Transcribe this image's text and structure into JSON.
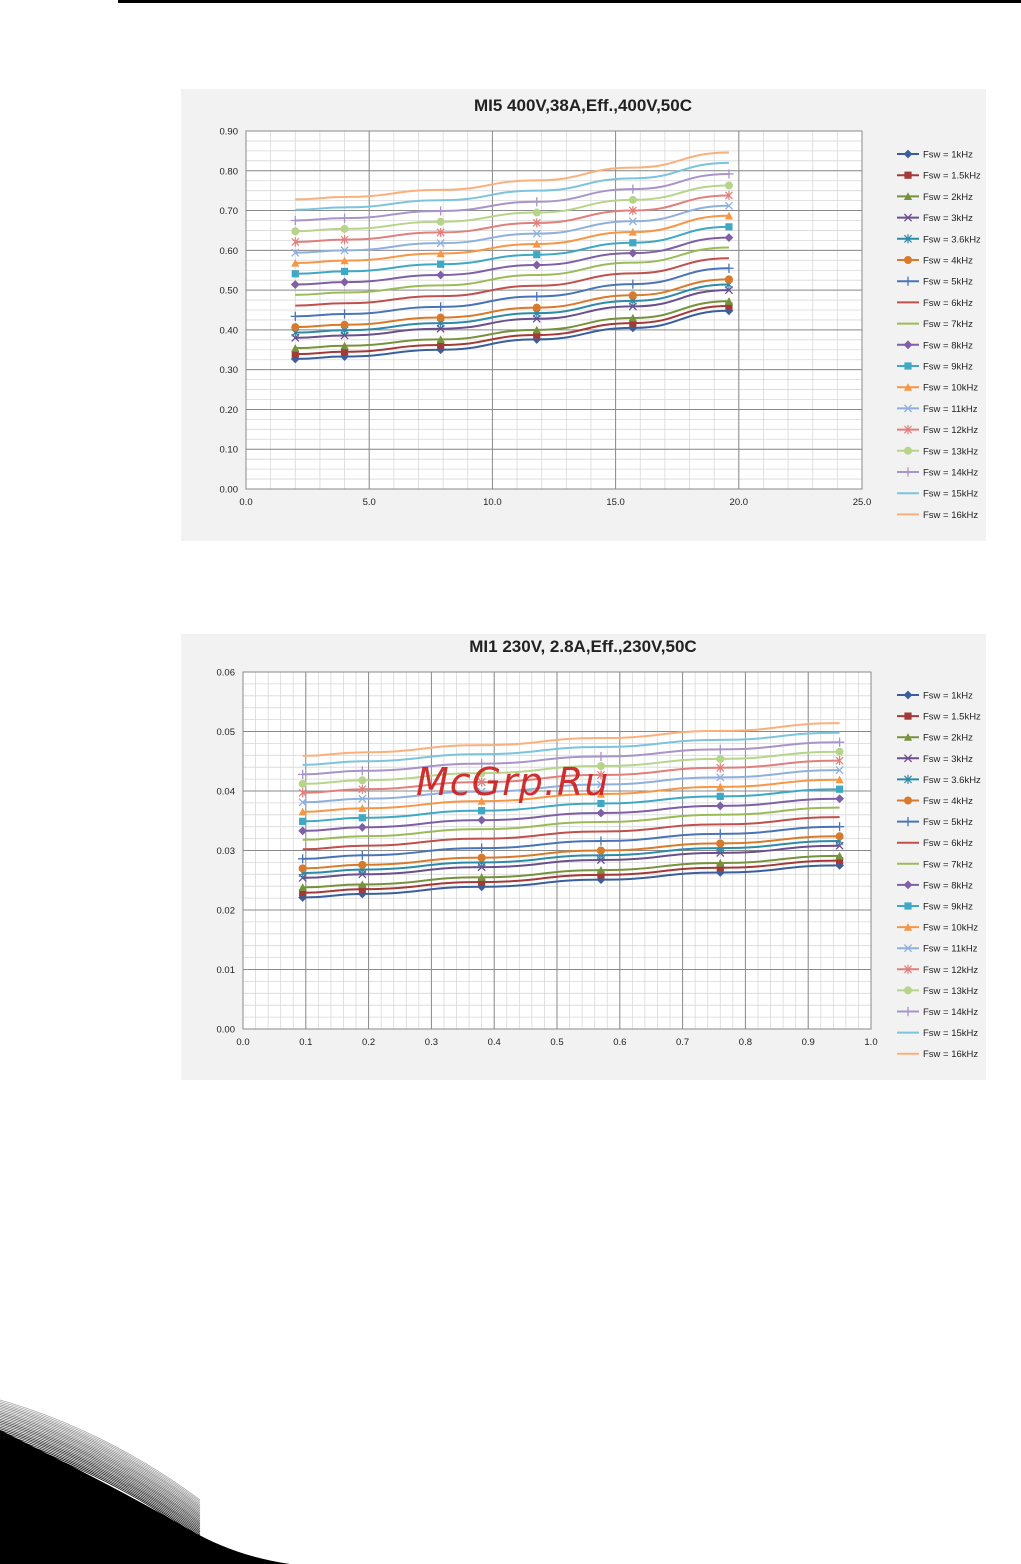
{
  "watermark": "McGrp.Ru",
  "series_colors": {
    "Fsw = 1kHz": "#3b5f9c",
    "Fsw = 1.5kHz": "#a33a37",
    "Fsw = 2kHz": "#76923c",
    "Fsw = 3kHz": "#6a4f8c",
    "Fsw = 3.6kHz": "#2e8aa6",
    "Fsw = 4kHz": "#d87a2c",
    "Fsw = 5kHz": "#4a74b8",
    "Fsw = 6kHz": "#c0504d",
    "Fsw = 7kHz": "#9bbb59",
    "Fsw = 8kHz": "#7f5fa6",
    "Fsw = 9kHz": "#3fa8c4",
    "Fsw = 10kHz": "#f79646",
    "Fsw = 11kHz": "#8fb0dd",
    "Fsw = 12kHz": "#e07f7c",
    "Fsw = 13kHz": "#b6d48a",
    "Fsw = 14kHz": "#a894c9",
    "Fsw = 15kHz": "#7cc4dc",
    "Fsw = 16kHz": "#fbb07c"
  },
  "series_markers": {
    "Fsw = 1kHz": "diamond",
    "Fsw = 1.5kHz": "square",
    "Fsw = 2kHz": "triangle",
    "Fsw = 3kHz": "x",
    "Fsw = 3.6kHz": "star",
    "Fsw = 4kHz": "circle",
    "Fsw = 5kHz": "plus",
    "Fsw = 6kHz": "none",
    "Fsw = 7kHz": "none",
    "Fsw = 8kHz": "diamond",
    "Fsw = 9kHz": "square",
    "Fsw = 10kHz": "triangle",
    "Fsw = 11kHz": "x",
    "Fsw = 12kHz": "star",
    "Fsw = 13kHz": "circle",
    "Fsw = 14kHz": "plus",
    "Fsw = 15kHz": "none",
    "Fsw = 16kHz": "none"
  },
  "chart_data": [
    {
      "type": "line",
      "title": "MI5 400V,38A,Eff.,400V,50C",
      "xlabel": "",
      "ylabel": "",
      "xlim": [
        0,
        25
      ],
      "ylim": [
        0,
        0.9
      ],
      "x_ticks": [
        "0.0",
        "5.0",
        "10.0",
        "15.0",
        "20.0",
        "25.0"
      ],
      "y_ticks": [
        "0.00",
        "0.10",
        "0.20",
        "0.30",
        "0.40",
        "0.50",
        "0.60",
        "0.70",
        "0.80",
        "0.90"
      ],
      "grid": true,
      "legend_position": "right",
      "x": [
        2.0,
        4.0,
        7.9,
        11.8,
        15.7,
        19.6
      ],
      "series": [
        {
          "name": "Fsw = 1kHz",
          "values": [
            0.327,
            0.333,
            0.35,
            0.376,
            0.405,
            0.448
          ]
        },
        {
          "name": "Fsw = 1.5kHz",
          "values": [
            0.339,
            0.345,
            0.362,
            0.387,
            0.417,
            0.46
          ]
        },
        {
          "name": "Fsw = 2kHz",
          "values": [
            0.354,
            0.36,
            0.376,
            0.4,
            0.43,
            0.472
          ]
        },
        {
          "name": "Fsw = 3kHz",
          "values": [
            0.38,
            0.386,
            0.403,
            0.428,
            0.459,
            0.5
          ]
        },
        {
          "name": "Fsw = 3.6kHz",
          "values": [
            0.393,
            0.399,
            0.417,
            0.442,
            0.473,
            0.514
          ]
        },
        {
          "name": "Fsw = 4kHz",
          "values": [
            0.407,
            0.413,
            0.431,
            0.456,
            0.487,
            0.527
          ]
        },
        {
          "name": "Fsw = 5kHz",
          "values": [
            0.434,
            0.44,
            0.458,
            0.484,
            0.515,
            0.555
          ]
        },
        {
          "name": "Fsw = 6kHz",
          "values": [
            0.461,
            0.467,
            0.485,
            0.511,
            0.542,
            0.58
          ]
        },
        {
          "name": "Fsw = 7kHz",
          "values": [
            0.488,
            0.494,
            0.512,
            0.538,
            0.569,
            0.607
          ]
        },
        {
          "name": "Fsw = 8kHz",
          "values": [
            0.514,
            0.52,
            0.538,
            0.563,
            0.593,
            0.632
          ]
        },
        {
          "name": "Fsw = 9kHz",
          "values": [
            0.541,
            0.547,
            0.565,
            0.589,
            0.619,
            0.659
          ]
        },
        {
          "name": "Fsw = 10kHz",
          "values": [
            0.568,
            0.574,
            0.592,
            0.616,
            0.646,
            0.687
          ]
        },
        {
          "name": "Fsw = 11kHz",
          "values": [
            0.594,
            0.6,
            0.618,
            0.642,
            0.673,
            0.712
          ]
        },
        {
          "name": "Fsw = 12kHz",
          "values": [
            0.621,
            0.627,
            0.645,
            0.669,
            0.7,
            0.738
          ]
        },
        {
          "name": "Fsw = 13kHz",
          "values": [
            0.648,
            0.654,
            0.672,
            0.695,
            0.727,
            0.763
          ]
        },
        {
          "name": "Fsw = 14kHz",
          "values": [
            0.675,
            0.681,
            0.699,
            0.722,
            0.754,
            0.792
          ]
        },
        {
          "name": "Fsw = 15kHz",
          "values": [
            0.702,
            0.708,
            0.726,
            0.75,
            0.781,
            0.82
          ]
        },
        {
          "name": "Fsw = 16kHz",
          "values": [
            0.728,
            0.734,
            0.752,
            0.776,
            0.808,
            0.846
          ]
        }
      ]
    },
    {
      "type": "line",
      "title": "MI1 230V, 2.8A,Eff.,230V,50C",
      "xlabel": "",
      "ylabel": "",
      "xlim": [
        0,
        1.0
      ],
      "ylim": [
        0,
        0.06
      ],
      "x_ticks": [
        "0.0",
        "0.1",
        "0.2",
        "0.3",
        "0.4",
        "0.5",
        "0.6",
        "0.7",
        "0.8",
        "0.9",
        "1.0"
      ],
      "y_ticks": [
        "0.00",
        "0.01",
        "0.02",
        "0.03",
        "0.04",
        "0.05",
        "0.06"
      ],
      "grid": true,
      "legend_position": "right",
      "x": [
        0.095,
        0.19,
        0.38,
        0.57,
        0.76,
        0.95
      ],
      "series": [
        {
          "name": "Fsw = 1kHz",
          "values": [
            0.0221,
            0.0227,
            0.0239,
            0.0251,
            0.0263,
            0.0275
          ]
        },
        {
          "name": "Fsw = 1.5kHz",
          "values": [
            0.0229,
            0.0235,
            0.0247,
            0.0259,
            0.0271,
            0.0283
          ]
        },
        {
          "name": "Fsw = 2kHz",
          "values": [
            0.0238,
            0.0243,
            0.0255,
            0.0267,
            0.0279,
            0.0291
          ]
        },
        {
          "name": "Fsw = 3kHz",
          "values": [
            0.0254,
            0.026,
            0.0272,
            0.0284,
            0.0296,
            0.0308
          ]
        },
        {
          "name": "Fsw = 3.6kHz",
          "values": [
            0.0262,
            0.0268,
            0.028,
            0.0292,
            0.0304,
            0.0316
          ]
        },
        {
          "name": "Fsw = 4kHz",
          "values": [
            0.027,
            0.0276,
            0.0288,
            0.03,
            0.0312,
            0.0324
          ]
        },
        {
          "name": "Fsw = 5kHz",
          "values": [
            0.0286,
            0.0292,
            0.0304,
            0.0316,
            0.0328,
            0.034
          ]
        },
        {
          "name": "Fsw = 6kHz",
          "values": [
            0.0302,
            0.0308,
            0.032,
            0.0332,
            0.0344,
            0.0356
          ]
        },
        {
          "name": "Fsw = 7kHz",
          "values": [
            0.0318,
            0.0324,
            0.0336,
            0.0348,
            0.036,
            0.0372
          ]
        },
        {
          "name": "Fsw = 8kHz",
          "values": [
            0.0333,
            0.0339,
            0.0351,
            0.0363,
            0.0375,
            0.0387
          ]
        },
        {
          "name": "Fsw = 9kHz",
          "values": [
            0.0349,
            0.0355,
            0.0367,
            0.0379,
            0.0391,
            0.0403
          ]
        },
        {
          "name": "Fsw = 10kHz",
          "values": [
            0.0365,
            0.0371,
            0.0383,
            0.0395,
            0.0407,
            0.0419
          ]
        },
        {
          "name": "Fsw = 11kHz",
          "values": [
            0.0381,
            0.0387,
            0.0399,
            0.0411,
            0.0423,
            0.0435
          ]
        },
        {
          "name": "Fsw = 12kHz",
          "values": [
            0.0397,
            0.0403,
            0.0415,
            0.0427,
            0.0439,
            0.0451
          ]
        },
        {
          "name": "Fsw = 13kHz",
          "values": [
            0.0412,
            0.0418,
            0.043,
            0.0442,
            0.0454,
            0.0466
          ]
        },
        {
          "name": "Fsw = 14kHz",
          "values": [
            0.0428,
            0.0434,
            0.0446,
            0.0458,
            0.047,
            0.0482
          ]
        },
        {
          "name": "Fsw = 15kHz",
          "values": [
            0.0444,
            0.045,
            0.0462,
            0.0474,
            0.0486,
            0.0498
          ]
        },
        {
          "name": "Fsw = 16kHz",
          "values": [
            0.0459,
            0.0465,
            0.0477,
            0.0489,
            0.0501,
            0.0514
          ]
        }
      ]
    }
  ]
}
